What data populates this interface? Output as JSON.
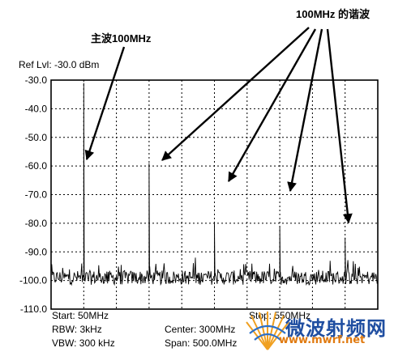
{
  "annotations": {
    "fundamental": "主波100MHz",
    "harmonics": "100MHz 的谐波"
  },
  "ref_level": "Ref Lvl: -30.0 dBm",
  "settings": {
    "start": "Start: 50MHz",
    "stop": "Stop: 550MHz",
    "rbw": "RBW: 3kHz",
    "vbw": "VBW: 300 kHz",
    "center": "Center: 300MHz",
    "span": "Span: 500.0MHz"
  },
  "watermark": {
    "title": "微波射频网",
    "url": "www.mwrf.net"
  },
  "colors": {
    "trace": "#000000",
    "grid": "#000000",
    "watermark_title": "#1f4ea1",
    "watermark_url": "#e07a10"
  },
  "chart_data": {
    "type": "line",
    "title": "",
    "xlabel": "",
    "ylabel": "",
    "x_unit": "MHz",
    "y_unit": "dBm",
    "xlim": [
      50,
      550
    ],
    "ylim": [
      -110,
      -30
    ],
    "yticks": [
      -30,
      -40,
      -50,
      -60,
      -70,
      -80,
      -90,
      -100,
      -110
    ],
    "ytick_labels": [
      "-30.0",
      "-40.0",
      "-50.0",
      "-60.0",
      "-70.0",
      "-80.0",
      "-90.0",
      "-100.0",
      "-110.0"
    ],
    "grid": true,
    "noise_floor": -99,
    "series": [
      {
        "peaks": [
          {
            "x": 100,
            "y": -31
          },
          {
            "x": 200,
            "y": -59
          },
          {
            "x": 300,
            "y": -80
          },
          {
            "x": 400,
            "y": -81
          },
          {
            "x": 500,
            "y": -85
          }
        ]
      }
    ]
  }
}
